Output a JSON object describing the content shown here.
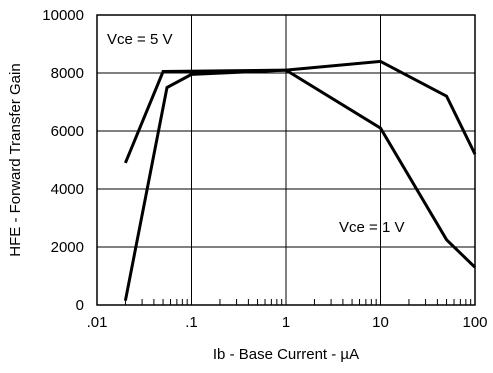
{
  "chart_data": {
    "type": "line",
    "title": "",
    "xlabel": "Ib - Base Current - µA",
    "ylabel": "HFE - Forward Transfer Gain",
    "xscale": "log",
    "xlim": [
      0.01,
      100
    ],
    "ylim": [
      0,
      10000
    ],
    "grid": true,
    "x_tick_labels": [
      {
        "value": 0.01,
        "label": ".01"
      },
      {
        "value": 0.1,
        "label": ".1"
      },
      {
        "value": 1,
        "label": "1"
      },
      {
        "value": 10,
        "label": "10"
      },
      {
        "value": 100,
        "label": "100"
      }
    ],
    "y_tick_labels": [
      {
        "value": 0,
        "label": "0"
      },
      {
        "value": 2000,
        "label": "2000"
      },
      {
        "value": 4000,
        "label": "4000"
      },
      {
        "value": 6000,
        "label": "6000"
      },
      {
        "value": 8000,
        "label": "8000"
      },
      {
        "value": 10000,
        "label": "10000"
      }
    ],
    "series": [
      {
        "label_text": "Vce = 5 V",
        "color": "#000000",
        "x": [
          0.02,
          0.05,
          1.0,
          10.0,
          50.0,
          100.0
        ],
        "y": [
          4900,
          8050,
          8100,
          8400,
          7200,
          5200
        ]
      },
      {
        "label_text": "Vce = 1 V",
        "color": "#000000",
        "x": [
          0.02,
          0.055,
          0.1,
          1.0,
          10.0,
          50.0,
          100.0
        ],
        "y": [
          150,
          7500,
          7950,
          8100,
          6100,
          2250,
          1300
        ]
      }
    ]
  }
}
